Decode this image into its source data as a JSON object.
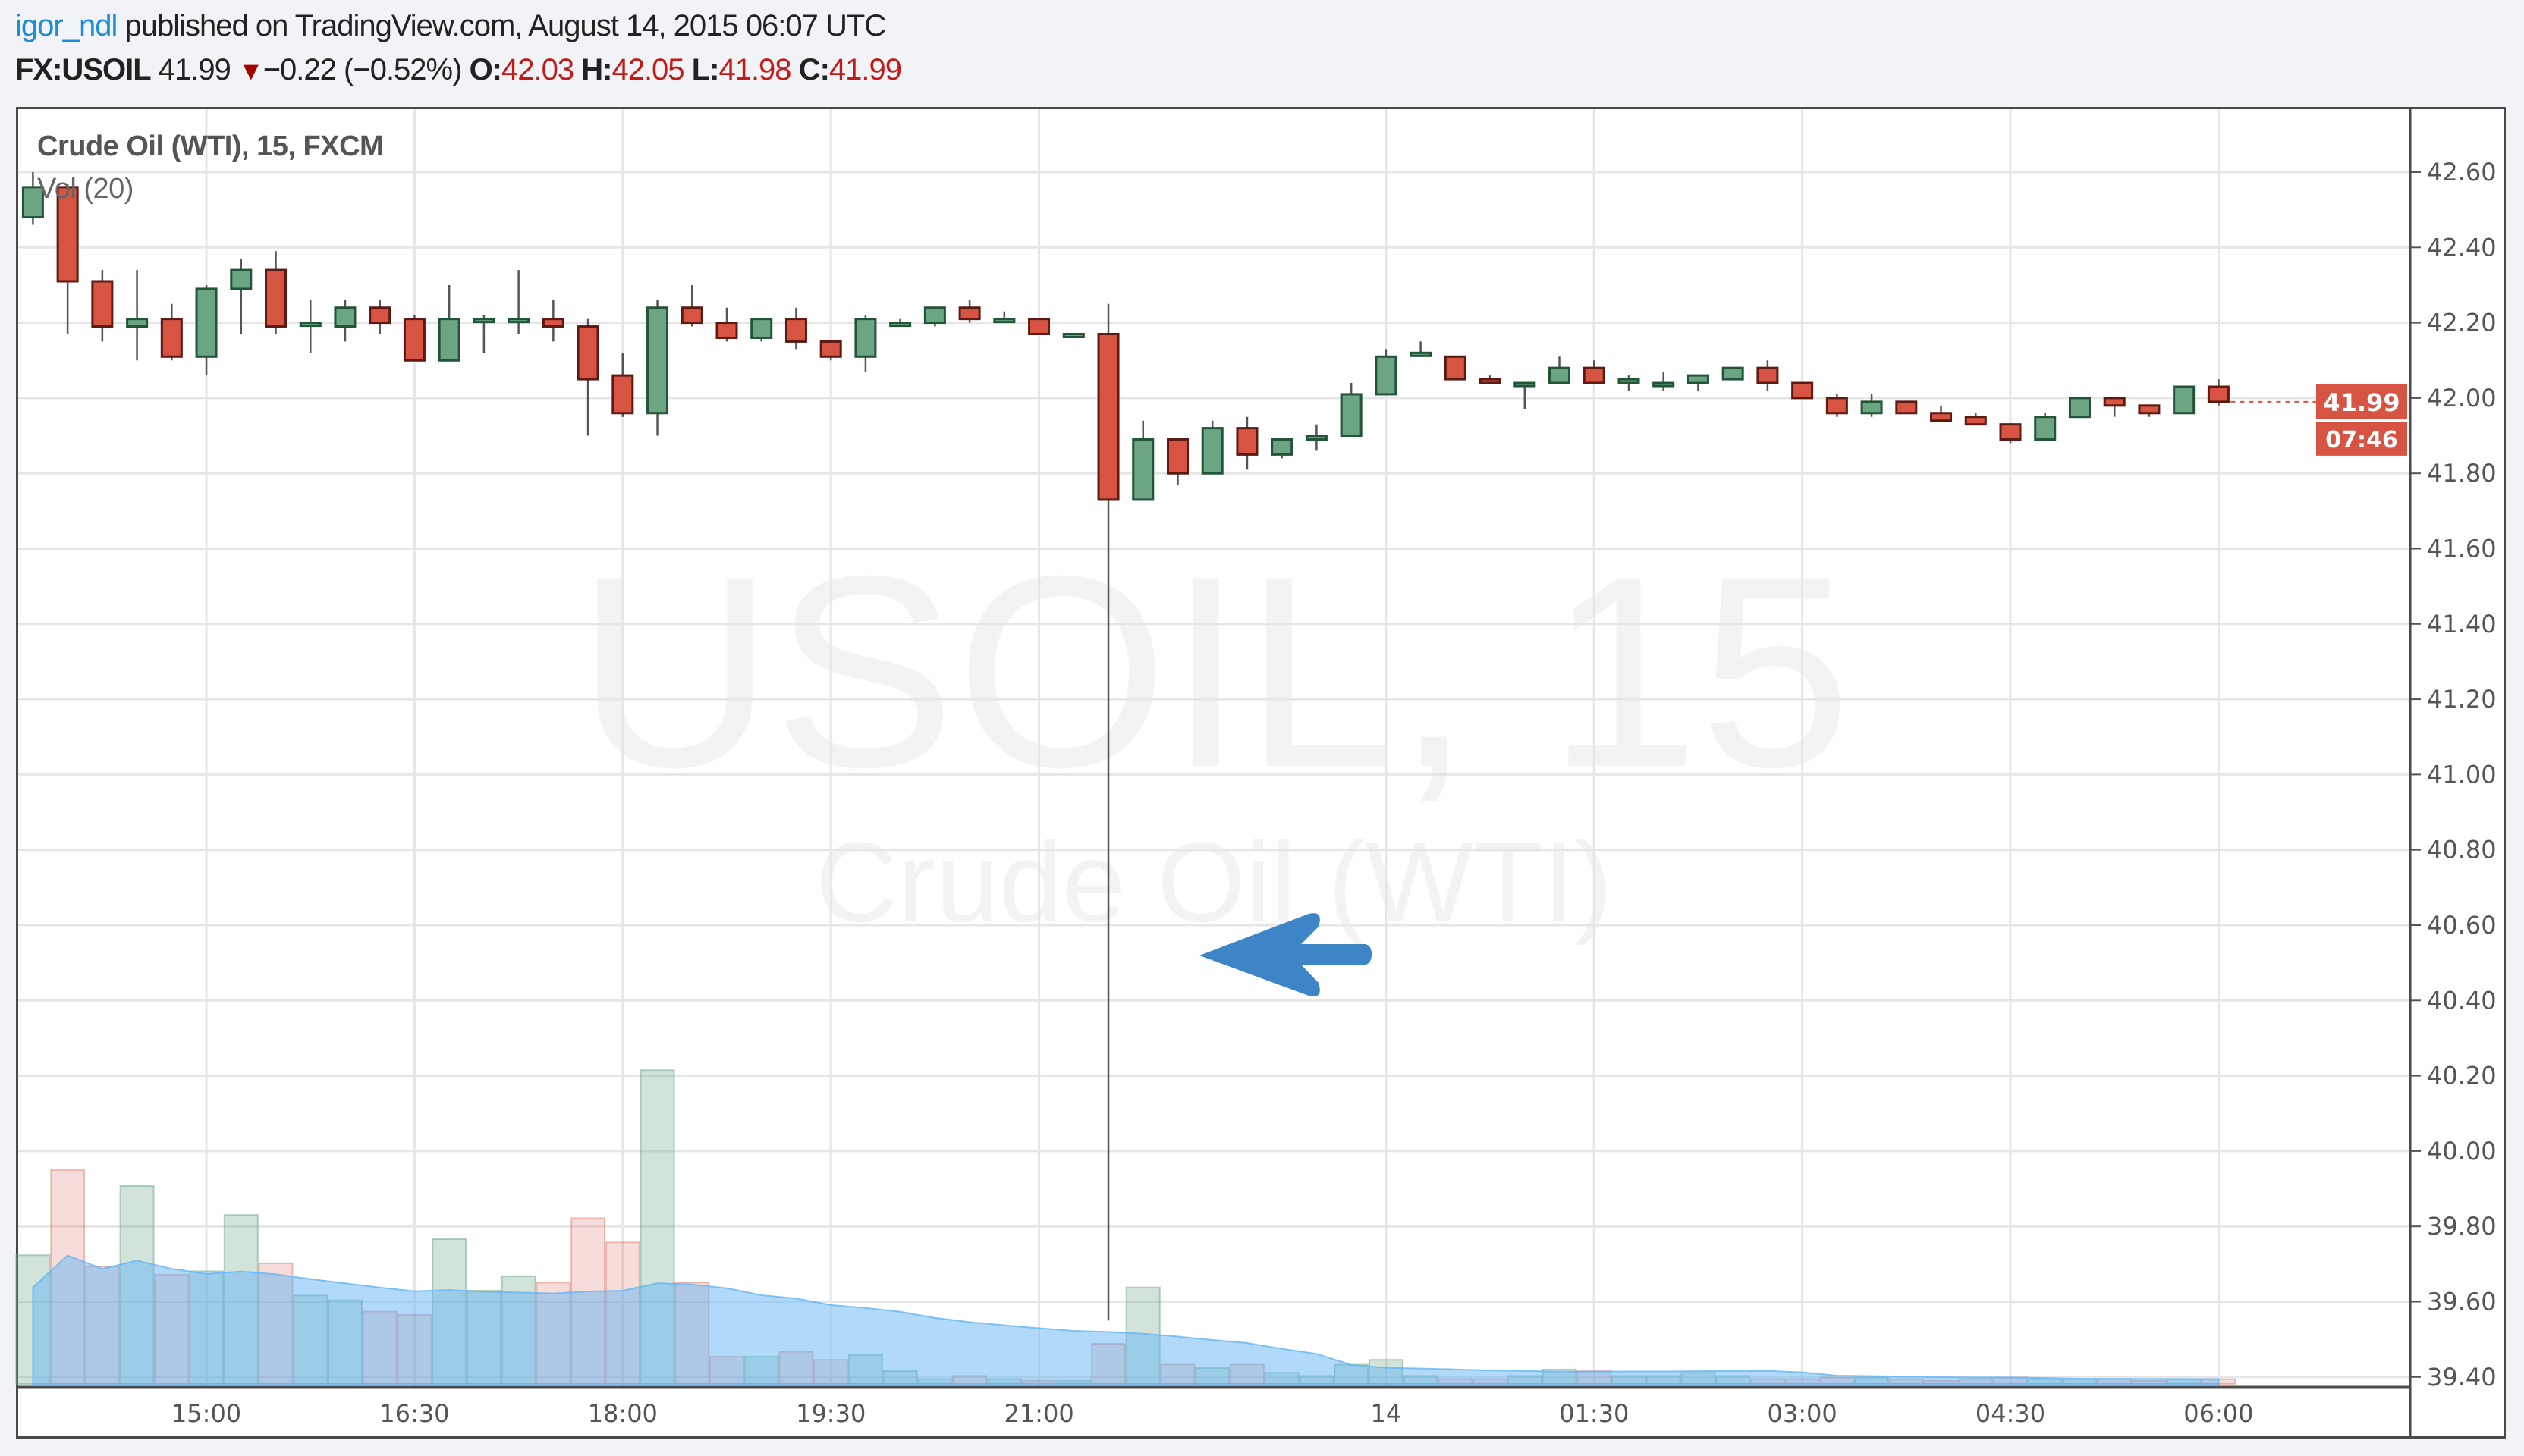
{
  "header": {
    "username": "igor_ndl",
    "published": "published on TradingView.com, August 14, 2015 06:07 UTC",
    "symbol": "FX:USOIL",
    "last": "41.99",
    "change": "−0.22 (−0.52%)",
    "open_label": "O:",
    "open": "42.03",
    "high_label": "H:",
    "high": "42.05",
    "low_label": "L:",
    "low": "41.98",
    "close_label": "C:",
    "close": "41.99",
    "direction_icon": "triangle-down-icon"
  },
  "legend": {
    "series": "Crude Oil (WTI), 15, FXCM",
    "volume": "Vol (20)"
  },
  "watermark": {
    "line1": "USOIL, 15",
    "line2": "Crude Oil (WTI)"
  },
  "price_badge": {
    "price": "41.99",
    "countdown": "07:46"
  },
  "annotation": {
    "icon": "arrow-left-icon",
    "color": "#3d85c6"
  },
  "colors": {
    "up": "#6ba583",
    "up_border": "#225437",
    "down": "#d75442",
    "down_border": "#5b1a13",
    "volume_ma": "#64b5f6"
  },
  "chart_data": {
    "type": "candlestick",
    "title": "Crude Oil (WTI), 15, FXCM",
    "interval": "15",
    "ylim": [
      39.4,
      42.6
    ],
    "grid": true,
    "y_ticks": [
      "42.60",
      "42.40",
      "42.20",
      "42.00",
      "41.80",
      "41.60",
      "41.40",
      "41.20",
      "41.00",
      "40.80",
      "40.60",
      "40.40",
      "40.20",
      "40.00",
      "39.80",
      "39.60",
      "39.40"
    ],
    "x_ticks": [
      {
        "label": "15:00",
        "at": "15:00"
      },
      {
        "label": "16:30",
        "at": "16:30"
      },
      {
        "label": "18:00",
        "at": "18:00"
      },
      {
        "label": "19:30",
        "at": "19:30"
      },
      {
        "label": "21:00",
        "at": "21:00"
      },
      {
        "label": "14",
        "at": "00:00"
      },
      {
        "label": "01:30",
        "at": "01:30"
      },
      {
        "label": "03:00",
        "at": "03:00"
      },
      {
        "label": "04:30",
        "at": "04:30"
      },
      {
        "label": "06:00",
        "at": "06:00"
      }
    ],
    "candles": [
      [
        "13:45",
        42.48,
        42.6,
        42.46,
        42.56
      ],
      [
        "14:00",
        42.56,
        42.57,
        42.17,
        42.31
      ],
      [
        "14:15",
        42.31,
        42.34,
        42.15,
        42.19
      ],
      [
        "14:30",
        42.19,
        42.34,
        42.1,
        42.21
      ],
      [
        "14:45",
        42.21,
        42.25,
        42.1,
        42.11
      ],
      [
        "15:00",
        42.11,
        42.3,
        42.06,
        42.29
      ],
      [
        "15:15",
        42.29,
        42.37,
        42.17,
        42.34
      ],
      [
        "15:30",
        42.34,
        42.39,
        42.17,
        42.19
      ],
      [
        "15:45",
        42.2,
        42.26,
        42.12,
        42.2
      ],
      [
        "16:00",
        42.19,
        42.26,
        42.15,
        42.24
      ],
      [
        "16:15",
        42.24,
        42.26,
        42.17,
        42.2
      ],
      [
        "16:30",
        42.21,
        42.22,
        42.1,
        42.1
      ],
      [
        "16:45",
        42.1,
        42.3,
        42.1,
        42.21
      ],
      [
        "17:00",
        42.21,
        42.22,
        42.12,
        42.21
      ],
      [
        "17:15",
        42.21,
        42.34,
        42.17,
        42.21
      ],
      [
        "17:30",
        42.21,
        42.26,
        42.15,
        42.19
      ],
      [
        "17:45",
        42.19,
        42.21,
        41.9,
        42.05
      ],
      [
        "18:00",
        42.06,
        42.12,
        41.95,
        41.96
      ],
      [
        "18:15",
        41.96,
        42.26,
        41.9,
        42.24
      ],
      [
        "18:30",
        42.24,
        42.3,
        42.19,
        42.2
      ],
      [
        "18:45",
        42.2,
        42.24,
        42.15,
        42.16
      ],
      [
        "19:00",
        42.16,
        42.21,
        42.15,
        42.21
      ],
      [
        "19:15",
        42.21,
        42.24,
        42.13,
        42.15
      ],
      [
        "19:30",
        42.15,
        42.15,
        42.1,
        42.11
      ],
      [
        "19:45",
        42.11,
        42.22,
        42.07,
        42.21
      ],
      [
        "20:00",
        42.2,
        42.21,
        42.19,
        42.2
      ],
      [
        "20:15",
        42.2,
        42.24,
        42.19,
        42.24
      ],
      [
        "20:30",
        42.24,
        42.26,
        42.2,
        42.21
      ],
      [
        "20:45",
        42.21,
        42.23,
        42.21,
        42.21
      ],
      [
        "21:00",
        42.21,
        42.21,
        42.17,
        42.17
      ],
      [
        "21:15",
        42.17,
        42.17,
        42.17,
        42.17
      ],
      [
        "22:00",
        42.17,
        42.25,
        39.55,
        41.73
      ],
      [
        "22:15",
        41.73,
        41.94,
        41.73,
        41.89
      ],
      [
        "22:30",
        41.89,
        41.89,
        41.77,
        41.8
      ],
      [
        "22:45",
        41.8,
        41.94,
        41.8,
        41.92
      ],
      [
        "23:00",
        41.92,
        41.95,
        41.81,
        41.85
      ],
      [
        "23:15",
        41.85,
        41.89,
        41.84,
        41.89
      ],
      [
        "23:30",
        41.89,
        41.93,
        41.86,
        41.9
      ],
      [
        "23:45",
        41.9,
        42.04,
        41.9,
        42.01
      ],
      [
        "00:00",
        42.01,
        42.13,
        42.01,
        42.11
      ],
      [
        "00:15",
        42.12,
        42.15,
        42.11,
        42.12
      ],
      [
        "00:30",
        42.11,
        42.11,
        42.05,
        42.05
      ],
      [
        "00:45",
        42.05,
        42.06,
        42.04,
        42.04
      ],
      [
        "01:00",
        42.04,
        42.04,
        41.97,
        42.04
      ],
      [
        "01:15",
        42.04,
        42.11,
        42.04,
        42.08
      ],
      [
        "01:30",
        42.08,
        42.1,
        42.04,
        42.04
      ],
      [
        "01:45",
        42.04,
        42.06,
        42.02,
        42.05
      ],
      [
        "02:00",
        42.04,
        42.07,
        42.02,
        42.04
      ],
      [
        "02:15",
        42.04,
        42.06,
        42.02,
        42.06
      ],
      [
        "02:30",
        42.05,
        42.08,
        42.05,
        42.08
      ],
      [
        "02:45",
        42.08,
        42.1,
        42.02,
        42.04
      ],
      [
        "03:00",
        42.04,
        42.04,
        42.0,
        42.0
      ],
      [
        "03:15",
        42.0,
        42.01,
        41.95,
        41.96
      ],
      [
        "03:30",
        41.96,
        42.01,
        41.95,
        41.99
      ],
      [
        "03:45",
        41.99,
        41.99,
        41.96,
        41.96
      ],
      [
        "04:00",
        41.96,
        41.98,
        41.94,
        41.94
      ],
      [
        "04:15",
        41.95,
        41.96,
        41.93,
        41.93
      ],
      [
        "04:30",
        41.93,
        41.93,
        41.88,
        41.89
      ],
      [
        "04:45",
        41.89,
        41.96,
        41.89,
        41.95
      ],
      [
        "05:00",
        41.95,
        42.0,
        41.95,
        42.0
      ],
      [
        "05:15",
        42.0,
        42.0,
        41.95,
        41.98
      ],
      [
        "05:30",
        41.98,
        41.98,
        41.95,
        41.96
      ],
      [
        "05:45",
        41.96,
        42.03,
        41.96,
        42.03
      ],
      [
        "06:00",
        42.03,
        42.05,
        41.98,
        41.99
      ]
    ],
    "volume_relative": [
      80,
      133,
      73,
      123,
      68,
      70,
      105,
      75,
      55,
      52,
      45,
      43,
      90,
      58,
      67,
      63,
      103,
      88,
      195,
      63,
      17,
      17,
      20,
      15,
      18,
      8,
      3,
      5,
      3,
      2,
      2,
      25,
      60,
      12,
      10,
      12,
      7,
      5,
      12,
      15,
      5,
      3,
      3,
      5,
      9,
      8,
      5,
      5,
      7,
      5,
      3,
      3,
      4,
      4,
      3,
      2,
      3,
      4,
      3,
      3,
      3,
      2,
      3,
      3
    ],
    "volume_ma_length": 20
  }
}
